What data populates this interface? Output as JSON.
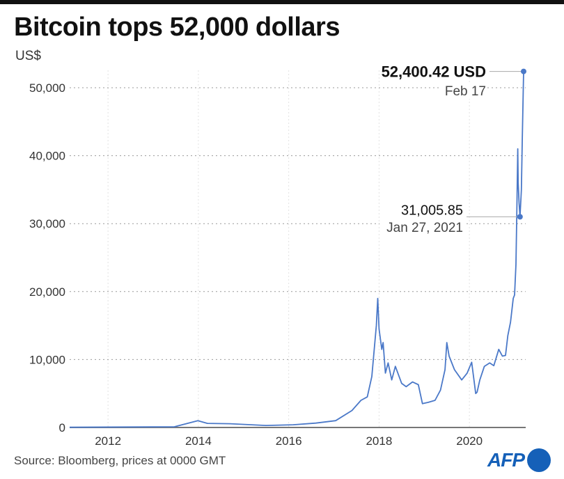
{
  "chart_data": {
    "type": "line",
    "title": "Bitcoin tops 52,000 dollars",
    "ylabel": "US$",
    "xlabel": "",
    "ylim": [
      0,
      50000
    ],
    "xlim": [
      2011.15,
      2021.2
    ],
    "yticks": [
      0,
      10000,
      20000,
      30000,
      40000,
      50000
    ],
    "ytick_labels": [
      "0",
      "10,000",
      "20,000",
      "30,000",
      "40,000",
      "50,000"
    ],
    "xticks": [
      2012,
      2014,
      2016,
      2018,
      2020
    ],
    "xtick_labels": [
      "2012",
      "2014",
      "2016",
      "2018",
      "2020"
    ],
    "grid": true,
    "color": "#4a78c8",
    "series": [
      {
        "name": "Bitcoin price (US$)",
        "x": [
          2011.15,
          2013.47,
          2013.99,
          2014.2,
          2014.7,
          2015.5,
          2016.1,
          2016.6,
          2017.04,
          2017.4,
          2017.6,
          2017.74,
          2017.84,
          2017.94,
          2017.97,
          2018.0,
          2018.06,
          2018.09,
          2018.14,
          2018.2,
          2018.28,
          2018.36,
          2018.5,
          2018.6,
          2018.74,
          2018.87,
          2018.96,
          2019.09,
          2019.24,
          2019.36,
          2019.46,
          2019.5,
          2019.55,
          2019.67,
          2019.83,
          2019.95,
          2020.05,
          2020.14,
          2020.17,
          2020.23,
          2020.33,
          2020.45,
          2020.54,
          2020.65,
          2020.73,
          2020.8,
          2020.85,
          2020.91,
          2020.97,
          2021.0,
          2021.03,
          2021.05,
          2021.07,
          2021.08,
          2021.1,
          2021.12,
          2021.15,
          2021.17,
          2021.2
        ],
        "y": [
          30,
          100,
          1000,
          600,
          550,
          300,
          400,
          650,
          1000,
          2500,
          4000,
          4500,
          7500,
          15000,
          19000,
          14500,
          11500,
          12500,
          8000,
          9500,
          7000,
          9000,
          6500,
          6000,
          6700,
          6300,
          3500,
          3700,
          4000,
          5500,
          8500,
          12500,
          10500,
          8500,
          7000,
          8000,
          9600,
          5000,
          5200,
          7000,
          9000,
          9500,
          9100,
          11500,
          10500,
          10600,
          13500,
          15500,
          19000,
          19500,
          24000,
          32000,
          41000,
          36000,
          33000,
          31005.85,
          35000,
          42500,
          52400.42
        ]
      }
    ],
    "annotations": [
      {
        "value_label": "52,400.42 USD",
        "date_label": "Feb 17",
        "x": 2021.2,
        "y": 52400.42
      },
      {
        "value_label": "31,005.85",
        "date_label": "Jan 27, 2021",
        "x": 2021.12,
        "y": 31005.85
      }
    ],
    "source": "Source: Bloomberg, prices at 0000 GMT",
    "logo": "AFP"
  }
}
